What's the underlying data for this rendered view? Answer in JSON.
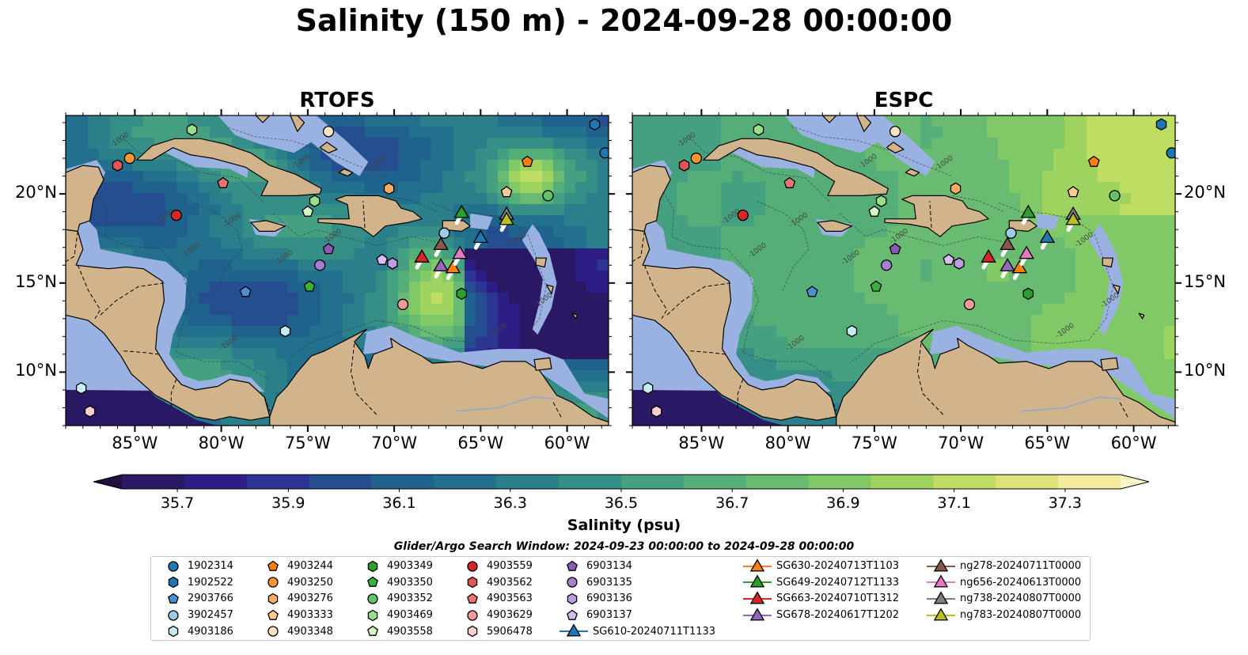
{
  "title": "Salinity (150 m) - 2024-09-28 00:00:00",
  "panels": [
    {
      "name": "RTOFS"
    },
    {
      "name": "ESPC"
    }
  ],
  "map": {
    "lon_range": [
      -89,
      -57.6
    ],
    "lat_range": [
      7.0,
      24.4
    ],
    "lon_ticks": [
      -85,
      -80,
      -75,
      -70,
      -65,
      -60
    ],
    "lon_tick_labels": [
      "85°W",
      "80°W",
      "75°W",
      "70°W",
      "65°W",
      "60°W"
    ],
    "lat_ticks": [
      10,
      15,
      20
    ],
    "lat_tick_labels": [
      "10°N",
      "15°N",
      "20°N"
    ],
    "land_color": "#d2b48c",
    "shelf_color": "#99b2e1",
    "contour_label": "-1000"
  },
  "colorbar": {
    "label": "Salinity (psu)",
    "min": 35.6,
    "max": 37.4,
    "ticks": [
      "35.7",
      "35.9",
      "36.1",
      "36.3",
      "36.5",
      "36.7",
      "36.9",
      "37.1",
      "37.3"
    ],
    "colors": [
      "#2a1864",
      "#2c1e84",
      "#2c3592",
      "#254e90",
      "#1f628e",
      "#23708e",
      "#2b7f8b",
      "#368f87",
      "#44a081",
      "#55ae78",
      "#68bb70",
      "#81c867",
      "#9fd35f",
      "#bedd62",
      "#dee279",
      "#f4ec9c"
    ]
  },
  "search_window": "Glider/Argo Search Window: 2024-09-23 00:00:00 to 2024-09-28 00:00:00",
  "legend": [
    {
      "label": "1902314",
      "marker": "circle",
      "color": "#1f77b4"
    },
    {
      "label": "1902522",
      "marker": "hexagon",
      "color": "#1f77b4"
    },
    {
      "label": "2903766",
      "marker": "pentagon",
      "color": "#4b8fd0"
    },
    {
      "label": "3902457",
      "marker": "circle",
      "color": "#9ecae9"
    },
    {
      "label": "4903186",
      "marker": "hexagon",
      "color": "#c8ecf5"
    },
    {
      "label": "4903244",
      "marker": "pentagon",
      "color": "#ff7f0e"
    },
    {
      "label": "4903250",
      "marker": "circle",
      "color": "#ff9633"
    },
    {
      "label": "4903276",
      "marker": "hexagon",
      "color": "#ffab66"
    },
    {
      "label": "4903333",
      "marker": "pentagon",
      "color": "#ffc994"
    },
    {
      "label": "4903348",
      "marker": "circle",
      "color": "#ffe3c4"
    },
    {
      "label": "4903349",
      "marker": "hexagon",
      "color": "#2ca02c"
    },
    {
      "label": "4903350",
      "marker": "pentagon",
      "color": "#39b039"
    },
    {
      "label": "4903352",
      "marker": "circle",
      "color": "#66c266"
    },
    {
      "label": "4903469",
      "marker": "hexagon",
      "color": "#98df8a"
    },
    {
      "label": "4903558",
      "marker": "pentagon",
      "color": "#d4f7c8"
    },
    {
      "label": "4903559",
      "marker": "circle",
      "color": "#d62728"
    },
    {
      "label": "4903562",
      "marker": "hexagon",
      "color": "#e05555"
    },
    {
      "label": "4903563",
      "marker": "pentagon",
      "color": "#ea7373"
    },
    {
      "label": "4903629",
      "marker": "circle",
      "color": "#f09a9a"
    },
    {
      "label": "5906478",
      "marker": "hexagon",
      "color": "#fcd0d0"
    },
    {
      "label": "6903134",
      "marker": "pentagon",
      "color": "#8c5ab4"
    },
    {
      "label": "6903135",
      "marker": "circle",
      "color": "#a57fd0"
    },
    {
      "label": "6903136",
      "marker": "hexagon",
      "color": "#bc9de0"
    },
    {
      "label": "6903137",
      "marker": "pentagon",
      "color": "#d5bdf0"
    },
    {
      "label": "SG610-20240711T1133",
      "marker": "triangle-line",
      "color": "#1f77b4"
    },
    {
      "label": "SG630-20240713T1103",
      "marker": "triangle-line",
      "color": "#ff7f0e"
    },
    {
      "label": "SG649-20240712T1133",
      "marker": "triangle-line",
      "color": "#2ca02c"
    },
    {
      "label": "SG663-20240710T1312",
      "marker": "triangle-line",
      "color": "#d62728"
    },
    {
      "label": "SG678-20240617T1202",
      "marker": "triangle-line",
      "color": "#9467bd"
    },
    {
      "label": "ng278-20240711T0000",
      "marker": "triangle-line",
      "color": "#8c564b"
    },
    {
      "label": "ng656-20240613T0000",
      "marker": "triangle-line",
      "color": "#e377c2"
    },
    {
      "label": "ng738-20240807T0000",
      "marker": "triangle-line",
      "color": "#7f7f7f"
    },
    {
      "label": "ng783-20240807T0000",
      "marker": "triangle-line",
      "color": "#bcbd22"
    }
  ],
  "argo_positions": [
    {
      "id": "1902314",
      "lon": -57.8,
      "lat": 22.3
    },
    {
      "id": "1902522",
      "lon": -58.4,
      "lat": 23.9
    },
    {
      "id": "2903766",
      "lon": -78.6,
      "lat": 14.5
    },
    {
      "id": "3902457",
      "lon": -67.1,
      "lat": 17.8
    },
    {
      "id": "4903186",
      "lon": -76.3,
      "lat": 12.3
    },
    {
      "id": "4903244",
      "lon": -62.3,
      "lat": 21.8
    },
    {
      "id": "4903250",
      "lon": -85.3,
      "lat": 22.0
    },
    {
      "id": "4903276",
      "lon": -70.3,
      "lat": 20.3
    },
    {
      "id": "4903333",
      "lon": -63.5,
      "lat": 20.1
    },
    {
      "id": "4903348",
      "lon": -73.8,
      "lat": 23.5
    },
    {
      "id": "4903349",
      "lon": -66.1,
      "lat": 14.4
    },
    {
      "id": "4903350",
      "lon": -74.9,
      "lat": 14.8
    },
    {
      "id": "4903352",
      "lon": -61.1,
      "lat": 19.9
    },
    {
      "id": "4903469",
      "lon": -74.6,
      "lat": 19.6
    },
    {
      "id": "4903558",
      "lon": -75.0,
      "lat": 19.0
    },
    {
      "id": "4903559",
      "lon": -82.6,
      "lat": 18.8
    },
    {
      "id": "4903562",
      "lon": -86.0,
      "lat": 21.6
    },
    {
      "id": "4903563",
      "lon": -79.9,
      "lat": 20.6
    },
    {
      "id": "4903629",
      "lon": -69.5,
      "lat": 13.8
    },
    {
      "id": "5906478",
      "lon": -87.6,
      "lat": 7.8
    },
    {
      "id": "6903134",
      "lon": -73.8,
      "lat": 16.9
    },
    {
      "id": "6903135",
      "lon": -74.3,
      "lat": 16.0
    },
    {
      "id": "6903136",
      "lon": -70.1,
      "lat": 16.1
    },
    {
      "id": "6903137",
      "lon": -70.7,
      "lat": 16.3
    },
    {
      "id": "4903186b",
      "lon": -88.1,
      "lat": 9.1
    },
    {
      "id": "4903469b",
      "lon": -81.7,
      "lat": 23.6
    }
  ],
  "glider_positions": [
    {
      "id": "SG610-20240711T1133",
      "lon": -65.0,
      "lat": 17.6
    },
    {
      "id": "SG630-20240713T1103",
      "lon": -66.6,
      "lat": 15.9
    },
    {
      "id": "SG649-20240712T1133",
      "lon": -66.1,
      "lat": 19.0
    },
    {
      "id": "SG663-20240710T1312",
      "lon": -68.4,
      "lat": 16.5
    },
    {
      "id": "SG678-20240617T1202",
      "lon": -67.3,
      "lat": 16.0
    },
    {
      "id": "ng278-20240711T0000",
      "lon": -67.3,
      "lat": 17.2
    },
    {
      "id": "ng656-20240613T0000",
      "lon": -66.2,
      "lat": 16.7
    },
    {
      "id": "ng738-20240807T0000",
      "lon": -63.5,
      "lat": 18.9
    },
    {
      "id": "ng783-20240807T0000",
      "lon": -63.5,
      "lat": 18.6
    }
  ]
}
